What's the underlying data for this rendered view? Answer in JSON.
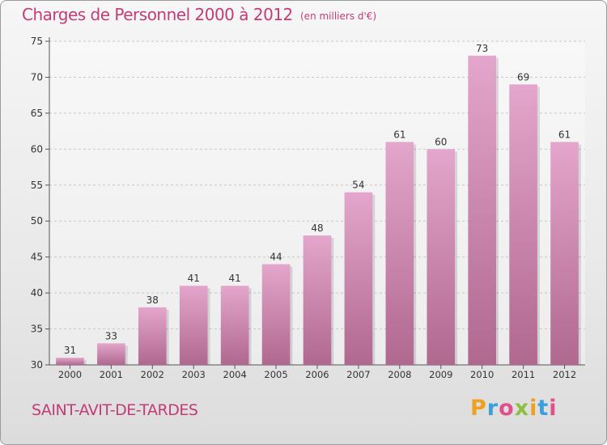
{
  "header": {
    "title": "Charges de Personnel 2000 à 2012",
    "subtitle": "(en milliers d'€)"
  },
  "footer": {
    "commune": "SAINT-AVIT-DE-TARDES",
    "logo_letters": [
      "P",
      "r",
      "o",
      "x",
      "i",
      "t",
      "i"
    ]
  },
  "colors": {
    "accent": "#c23c77",
    "bar_top": "#e4a6cc",
    "bar_bottom": "#b0688f"
  },
  "chart_data": {
    "type": "bar",
    "categories": [
      "2000",
      "2001",
      "2002",
      "2003",
      "2004",
      "2005",
      "2006",
      "2007",
      "2008",
      "2009",
      "2010",
      "2011",
      "2012"
    ],
    "values": [
      31,
      33,
      38,
      41,
      41,
      44,
      48,
      54,
      61,
      60,
      73,
      69,
      61
    ],
    "title": "Charges de Personnel 2000 à 2012",
    "subtitle": "(en milliers d'€)",
    "xlabel": "",
    "ylabel": "",
    "ylim": [
      30,
      75
    ],
    "yticks": [
      30,
      35,
      40,
      45,
      50,
      55,
      60,
      65,
      70,
      75
    ],
    "grid": true,
    "data_labels": true
  }
}
